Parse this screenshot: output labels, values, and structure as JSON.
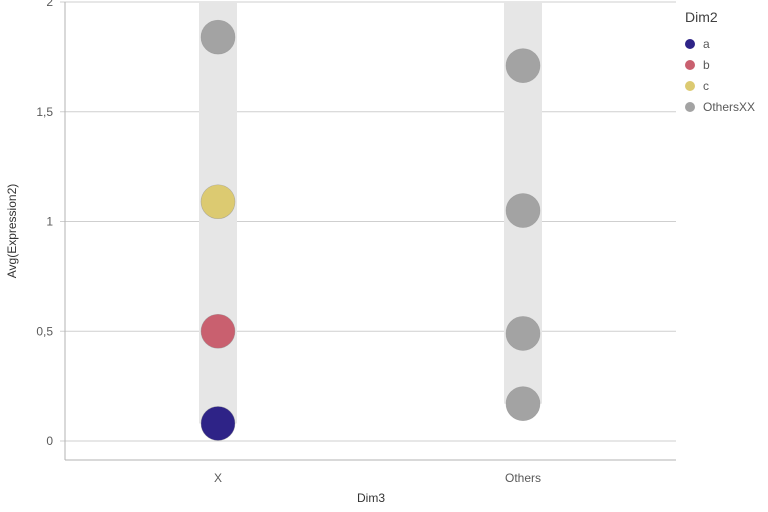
{
  "chart_data": {
    "type": "scatter",
    "xlabel": "Dim3",
    "ylabel": "Avg(Expression2)",
    "categories": [
      "X",
      "Others"
    ],
    "ylim": [
      0,
      2
    ],
    "yticks": [
      0,
      0.5,
      1,
      1.5,
      2
    ],
    "ytick_labels": [
      "0",
      "0,5",
      "1",
      "1,5",
      "2"
    ],
    "grid": true,
    "legend": {
      "title": "Dim2",
      "placement": "top-right",
      "entries": [
        {
          "label": "a",
          "color": "#2e2387"
        },
        {
          "label": "b",
          "color": "#c9606f"
        },
        {
          "label": "c",
          "color": "#dcca71"
        },
        {
          "label": "OthersXX",
          "color": "#a3a3a3"
        }
      ]
    },
    "points": [
      {
        "category": "X",
        "series": "a",
        "y": 0.08
      },
      {
        "category": "X",
        "series": "b",
        "y": 0.5
      },
      {
        "category": "X",
        "series": "c",
        "y": 1.09
      },
      {
        "category": "X",
        "series": "OthersXX",
        "y": 1.84
      },
      {
        "category": "Others",
        "series": "OthersXX",
        "y": 0.17
      },
      {
        "category": "Others",
        "series": "OthersXX",
        "y": 0.49
      },
      {
        "category": "Others",
        "series": "OthersXX",
        "y": 1.05
      },
      {
        "category": "Others",
        "series": "OthersXX",
        "y": 1.71
      }
    ],
    "colors": {
      "range_band": "#e6e6e6",
      "gridline": "#cfcfcf",
      "axis": "#b3b3b3",
      "point_stroke": "#8f8f8f"
    }
  }
}
